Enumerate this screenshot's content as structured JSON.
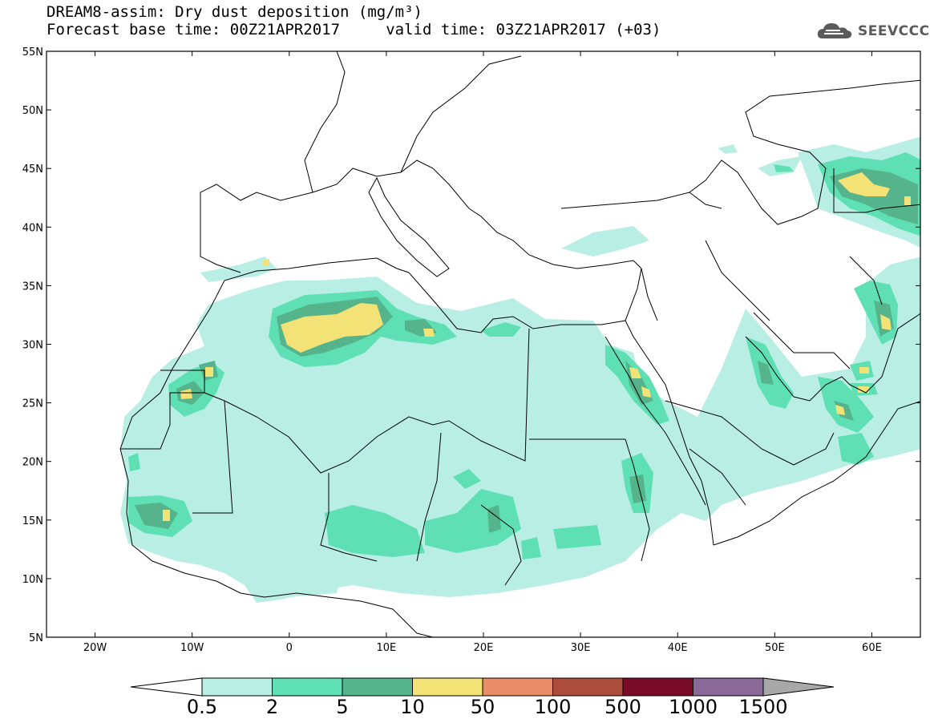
{
  "title": {
    "line1": "DREAM8-assim: Dry dust deposition (mg/m³)",
    "line2": "Forecast base time: 00Z21APR2017     valid time: 03Z21APR2017 (+03)"
  },
  "logo": {
    "text": "SEEVCCC",
    "icon": "cloud-logo-icon"
  },
  "map": {
    "lat_labels": [
      "55N",
      "50N",
      "45N",
      "40N",
      "35N",
      "30N",
      "25N",
      "20N",
      "15N",
      "10N",
      "5N"
    ],
    "lon_labels": [
      "20W",
      "10W",
      "0",
      "10E",
      "20E",
      "30E",
      "40E",
      "50E",
      "60E"
    ],
    "lon_range": [
      -25,
      65
    ],
    "lat_range": [
      5,
      55
    ]
  },
  "colorbar": {
    "labels": [
      "0.5",
      "2",
      "5",
      "10",
      "50",
      "100",
      "500",
      "1000",
      "1500"
    ],
    "colors": [
      "#b9eee4",
      "#5fe0b4",
      "#55b48c",
      "#f3e276",
      "#ea8c68",
      "#ac4c3c",
      "#7a0c2a",
      "#8a6898"
    ],
    "under_color": "#ffffff",
    "over_color": "#a8a8a8"
  }
}
